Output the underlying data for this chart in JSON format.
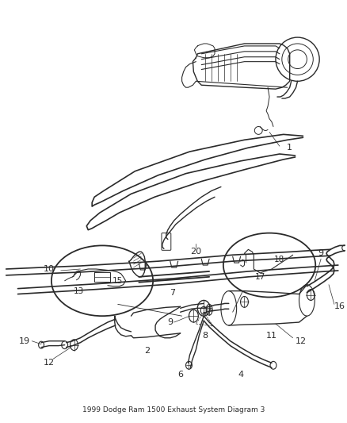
{
  "title": "1999 Dodge Ram 1500 Exhaust System Diagram 3",
  "bg": "#ffffff",
  "lc": "#2a2a2a",
  "figw": 4.39,
  "figh": 5.33,
  "dpi": 100,
  "label_fs": 7.5,
  "title_fs": 6.5
}
